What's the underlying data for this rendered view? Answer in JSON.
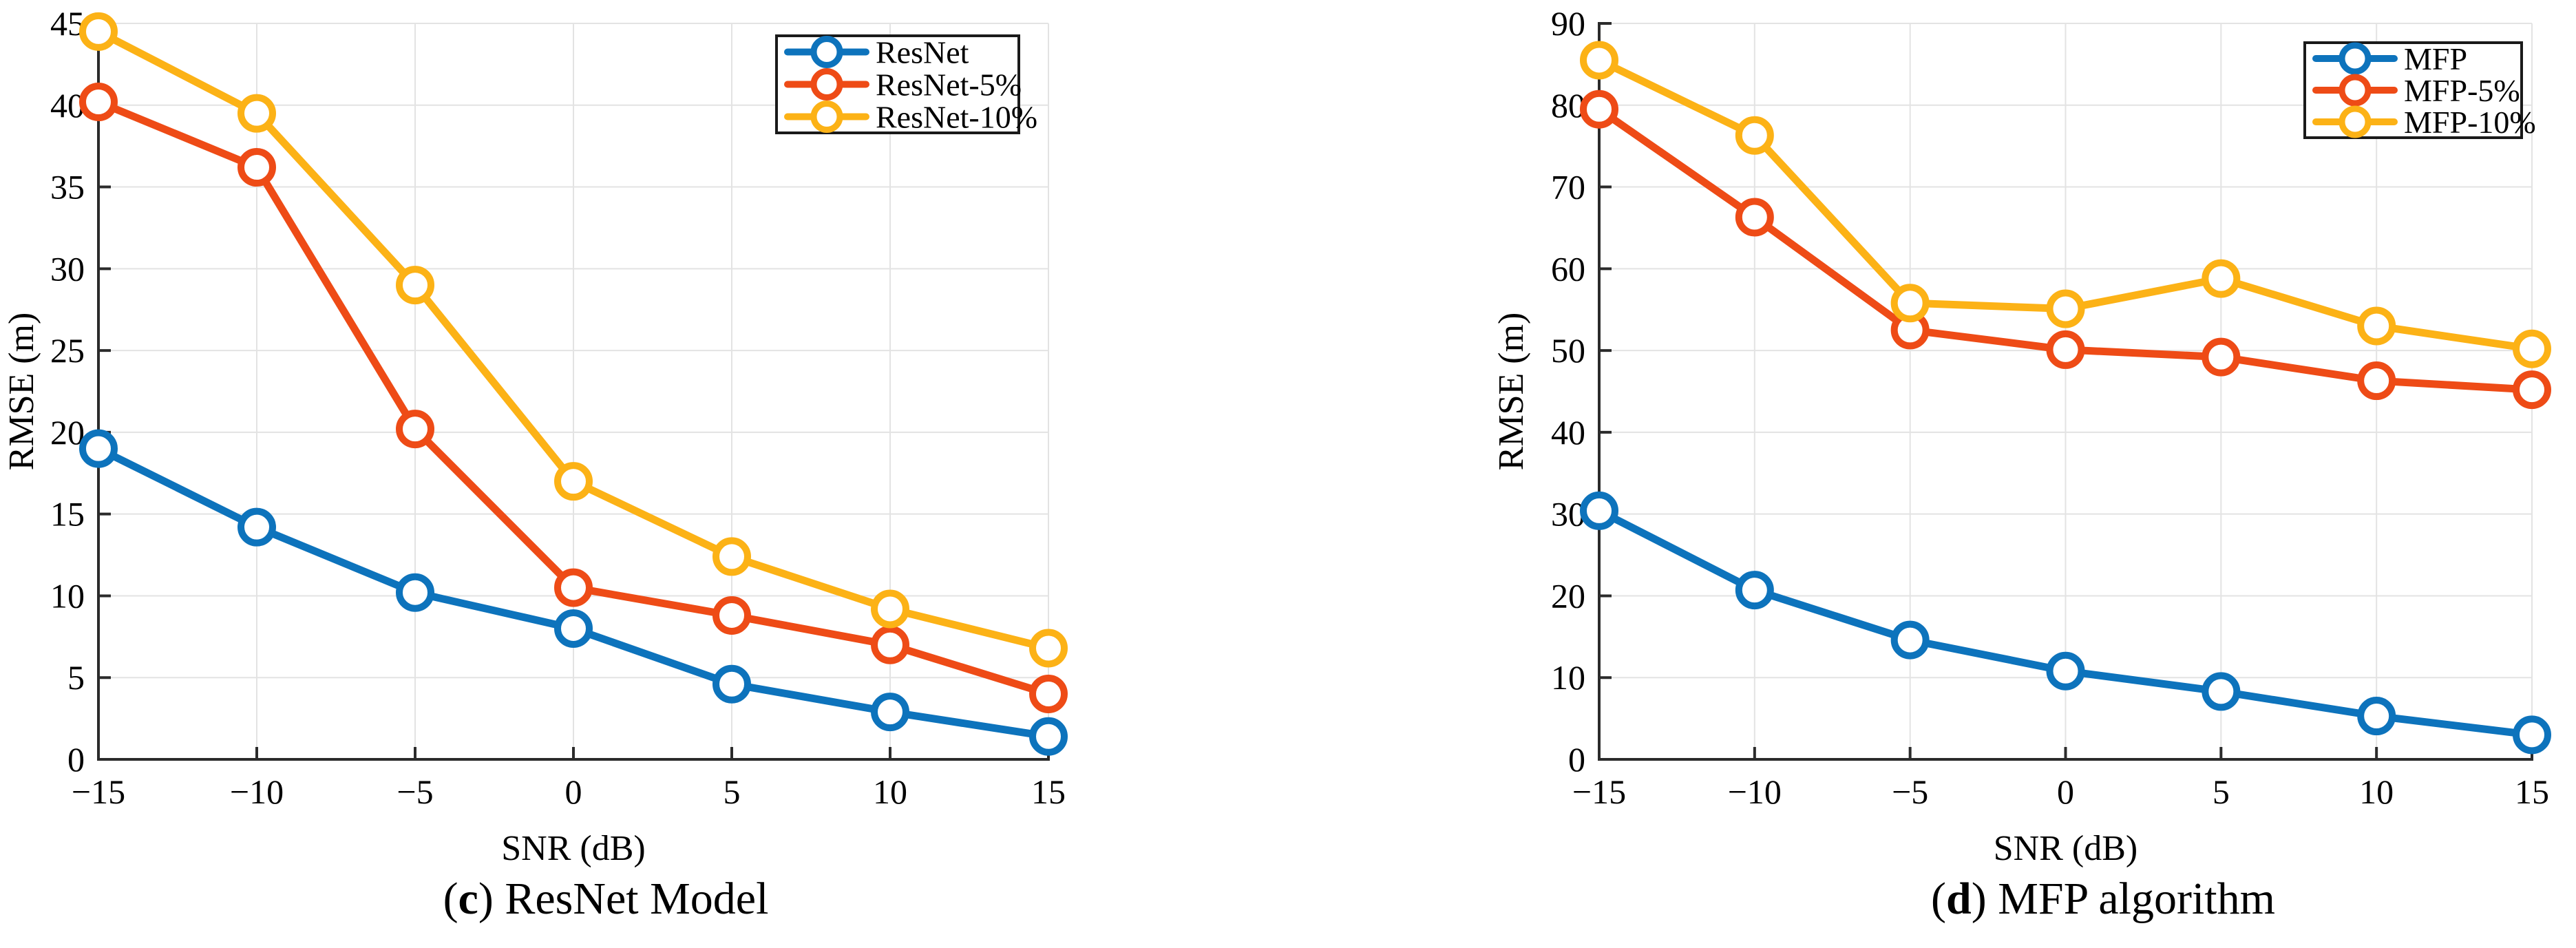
{
  "page": {
    "background": "#ffffff"
  },
  "style": {
    "series_colors": {
      "blue": "#0D73BC",
      "red": "#EE4B16",
      "yellow": "#FCB216"
    },
    "grid_color": "#E3E3E3",
    "axis_color": "#2B2B2B",
    "text_color": "#000000",
    "legend_background": "#FFFFFF",
    "legend_border": "#1A1A1A"
  },
  "chart_data": [
    {
      "type": "line",
      "title": "(c) ResNet Model",
      "caption": {
        "open": "(",
        "letter": "c",
        "rest": ") ResNet Model"
      },
      "xlabel": "SNR (dB)",
      "ylabel": "RMSE (m)",
      "x": [
        -15,
        -10,
        -5,
        0,
        5,
        10,
        15
      ],
      "xlim": [
        -15,
        15
      ],
      "ylim": [
        0,
        45
      ],
      "ytick_step": 5,
      "xtick_labels": [
        "−15",
        "−10",
        "−5",
        "0",
        "5",
        "10",
        "15"
      ],
      "ytick_labels": [
        "0",
        "5",
        "10",
        "15",
        "20",
        "25",
        "30",
        "35",
        "40",
        "45"
      ],
      "grid": true,
      "legend_position": "top-right-inside",
      "series": [
        {
          "name": "ResNet",
          "color_key": "blue",
          "values": [
            19.0,
            14.2,
            10.2,
            8.0,
            4.6,
            2.9,
            1.4
          ]
        },
        {
          "name": "ResNet-5%",
          "color_key": "red",
          "values": [
            40.2,
            36.2,
            20.2,
            10.5,
            8.8,
            7.0,
            4.0
          ]
        },
        {
          "name": "ResNet-10%",
          "color_key": "yellow",
          "values": [
            44.5,
            39.5,
            29.0,
            17.0,
            12.4,
            9.2,
            6.8
          ]
        }
      ]
    },
    {
      "type": "line",
      "title": "(d) MFP algorithm",
      "caption": {
        "open": "(",
        "letter": "d",
        "rest": ") MFP algorithm"
      },
      "xlabel": "SNR (dB)",
      "ylabel": "RMSE (m)",
      "x": [
        -15,
        -10,
        -5,
        0,
        5,
        10,
        15
      ],
      "xlim": [
        -15,
        15
      ],
      "ylim": [
        0,
        90
      ],
      "ytick_step": 10,
      "xtick_labels": [
        "−15",
        "−10",
        "−5",
        "0",
        "5",
        "10",
        "15"
      ],
      "ytick_labels": [
        "0",
        "10",
        "20",
        "30",
        "40",
        "50",
        "60",
        "70",
        "80",
        "90"
      ],
      "grid": true,
      "legend_position": "top-right-inside",
      "series": [
        {
          "name": "MFP",
          "color_key": "blue",
          "values": [
            30.4,
            20.7,
            14.6,
            10.8,
            8.3,
            5.3,
            3.0
          ]
        },
        {
          "name": "MFP-5%",
          "color_key": "red",
          "values": [
            79.5,
            66.3,
            52.5,
            50.1,
            49.2,
            46.3,
            45.2
          ]
        },
        {
          "name": "MFP-10%",
          "color_key": "yellow",
          "values": [
            85.5,
            76.3,
            55.8,
            55.1,
            58.8,
            53.0,
            50.2
          ]
        }
      ]
    }
  ]
}
